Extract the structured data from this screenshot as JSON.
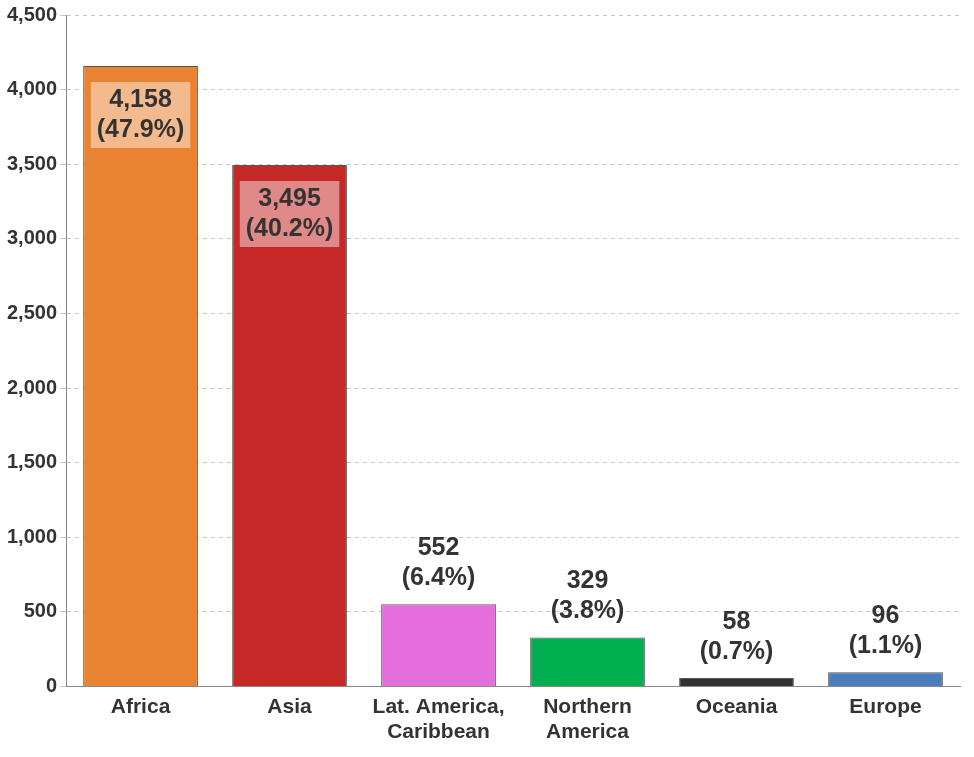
{
  "chart_data": {
    "type": "bar",
    "categories": [
      "Africa",
      "Asia",
      [
        "Lat. America,",
        "Caribbean"
      ],
      [
        "Northern",
        "America"
      ],
      "Oceania",
      "Europe"
    ],
    "values": [
      4158,
      3495,
      552,
      329,
      58,
      96
    ],
    "value_labels": [
      [
        "4,158",
        "(47.9%)"
      ],
      [
        "3,495",
        "(40.2%)"
      ],
      [
        "552",
        "(6.4%)"
      ],
      [
        "329",
        "(3.8%)"
      ],
      [
        "58",
        "(0.7%)"
      ],
      [
        "96",
        "(1.1%)"
      ]
    ],
    "colors": [
      "#e98331",
      "#c62828",
      "#e36fdd",
      "#00b050",
      "#333333",
      "#4a7ebb"
    ],
    "ylim": [
      0,
      4500
    ],
    "yticks": [
      0,
      500,
      {
        "value": 1000,
        "label": "1,000"
      },
      {
        "value": 1500,
        "label": "1,500"
      },
      {
        "value": 2000,
        "label": "2,000"
      },
      {
        "value": 2500,
        "label": "2,500"
      },
      {
        "value": 3000,
        "label": "3,000"
      },
      {
        "value": 3500,
        "label": "3,500"
      },
      {
        "value": 4000,
        "label": "4,000"
      },
      {
        "value": 4500,
        "label": "4,500"
      }
    ],
    "grid": true,
    "data_labels": true
  }
}
